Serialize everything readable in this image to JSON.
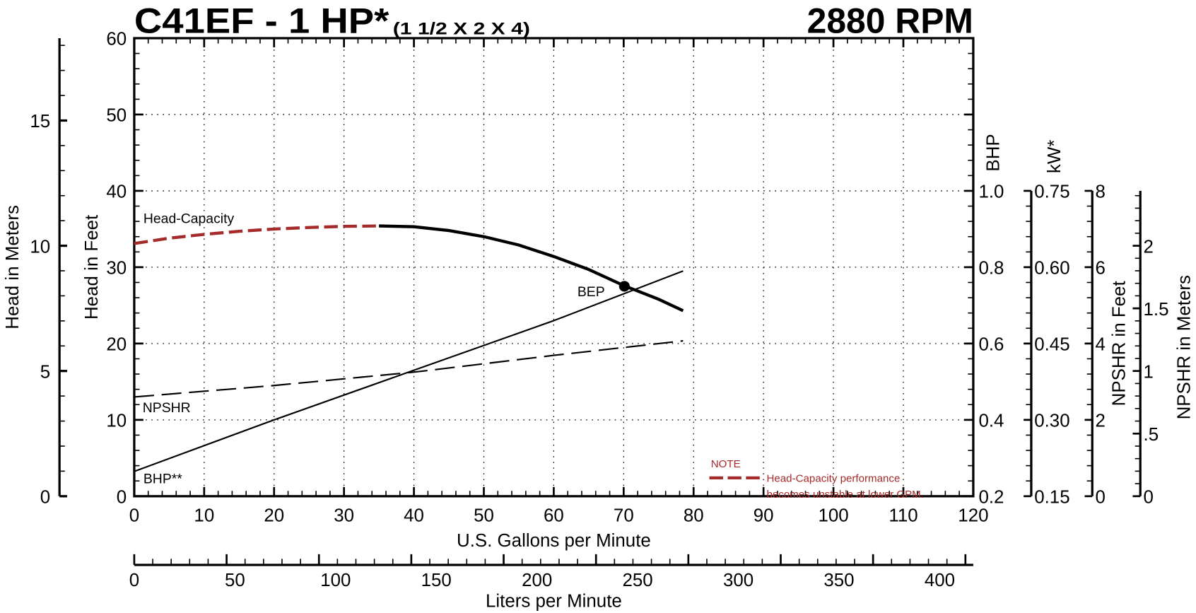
{
  "chart_data": {
    "type": "line",
    "title": "C41EF - 1 HP*",
    "subtitle": "(1 1/2 X 2 X 4)",
    "speed": "2880 RPM",
    "xlabel": "U.S. Gallons per Minute",
    "xlim": [
      0,
      120
    ],
    "xticks": [
      "0",
      "10",
      "20",
      "30",
      "40",
      "50",
      "60",
      "70",
      "80",
      "90",
      "100",
      "110",
      "120"
    ],
    "x2label": "Liters per Minute",
    "x2lim": [
      0,
      454.2
    ],
    "x2ticks": [
      "0",
      "50",
      "100",
      "150",
      "200",
      "250",
      "300",
      "350",
      "400"
    ],
    "ylabel": "Head in Feet",
    "ylim": [
      0,
      60
    ],
    "yticks": [
      "0",
      "10",
      "20",
      "30",
      "40",
      "50",
      "60"
    ],
    "y_meters_label": "Head in Meters",
    "y_meters_ticks": [
      "0",
      "5",
      "10",
      "15"
    ],
    "bhp_label": "BHP",
    "bhp_range": [
      0.2,
      1.0
    ],
    "bhp_ticks": [
      "0.2",
      "0.4",
      "0.6",
      "0.8",
      "1.0"
    ],
    "kw_label": "kW*",
    "kw_range": [
      0.15,
      0.75
    ],
    "kw_ticks": [
      "0.15",
      "0.30",
      "0.45",
      "0.60",
      "0.75"
    ],
    "npshr_ft_label": "NPSHR in Feet",
    "npshr_ft_range": [
      0,
      8
    ],
    "npshr_ft_ticks": [
      "0",
      "2",
      "4",
      "6",
      "8"
    ],
    "npshr_m_label": "NPSHR in Meters",
    "npshr_m_ticks": [
      "0",
      ".5",
      "1",
      "1.5",
      "2"
    ],
    "grid": true,
    "series": [
      {
        "name": "Head-Capacity",
        "unit": "ft",
        "unstable_below_gpm": 35,
        "color": "#000000",
        "unstable_color": "#a52a2a",
        "x": [
          0,
          5,
          10,
          15,
          20,
          25,
          30,
          35,
          40,
          45,
          50,
          55,
          60,
          65,
          70,
          75,
          78.5
        ],
        "y": [
          33.1,
          33.8,
          34.3,
          34.7,
          35.0,
          35.2,
          35.35,
          35.4,
          35.3,
          34.8,
          34.0,
          32.9,
          31.4,
          29.7,
          27.6,
          25.8,
          24.3
        ]
      },
      {
        "name": "BHP**",
        "unit": "BHP",
        "x": [
          0,
          20,
          40,
          60,
          78.5
        ],
        "y": [
          0.265,
          0.4,
          0.53,
          0.66,
          0.79
        ]
      },
      {
        "name": "NPSHR",
        "unit": "ft",
        "x": [
          0,
          20,
          40,
          60,
          78.5
        ],
        "y": [
          2.6,
          2.9,
          3.25,
          3.69,
          4.07
        ]
      }
    ],
    "bep": {
      "label": "BEP",
      "x": 70.1,
      "y": 27.5
    },
    "note": {
      "title": "NOTE",
      "lines": [
        "Head-Capacity performance",
        "becomes unstable at lower GPM."
      ],
      "color": "#a52a2a"
    }
  }
}
